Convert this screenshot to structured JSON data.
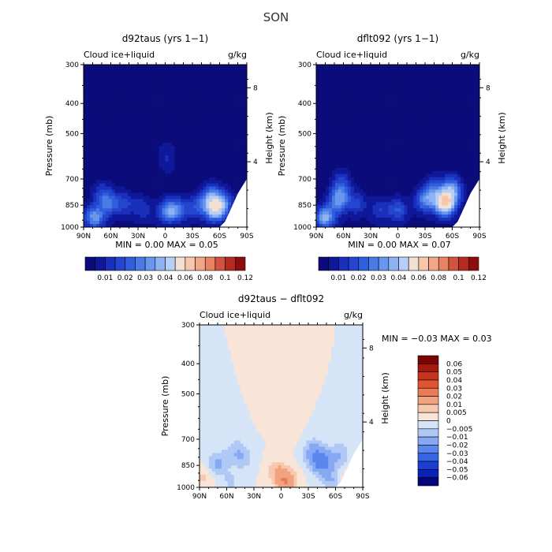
{
  "figure": {
    "title": "SON",
    "colors": {
      "seq": [
        "#0b0b7a",
        "#0e1899",
        "#1a2fbb",
        "#2446cf",
        "#2f5fdf",
        "#4a7be6",
        "#6a97ee",
        "#8fb3f2",
        "#b7cff6",
        "#f4dfd3",
        "#f6c6ad",
        "#f0a687",
        "#e98163",
        "#d25340",
        "#b32a20",
        "#8e0c0c"
      ],
      "div": [
        "#05057a",
        "#0a22b6",
        "#1b3fd6",
        "#3466e6",
        "#5a86ee",
        "#87a8f3",
        "#b0c8f6",
        "#d6e4f8",
        "#f9e5d8",
        "#f7c8ad",
        "#f1a380",
        "#eb7b57",
        "#e05432",
        "#c7331c",
        "#a5180d",
        "#7a0404"
      ]
    }
  },
  "chart_data": [
    {
      "type": "heatmap",
      "title": "d92taus (yrs 1−1)",
      "left_label": "Cloud ice+liquid",
      "right_label": "g/kg",
      "ylabel": "Pressure (mb)",
      "ylabel2": "Height (km)",
      "x_ticks": [
        "90N",
        "60N",
        "30N",
        "0",
        "30S",
        "60S",
        "90S"
      ],
      "y_ticks": [
        "300",
        "400",
        "500",
        "700",
        "850",
        "1000"
      ],
      "y2_ticks": [
        "8",
        "4"
      ],
      "stats": "MIN =    0.00   MAX =    0.05",
      "colorbar": {
        "labels": [
          "0.01",
          "0.02",
          "0.03",
          "0.04",
          "0.06",
          "0.08",
          "0.1",
          "0.12"
        ]
      },
      "features": [
        {
          "lat": 78,
          "p": 930,
          "value": 0.03
        },
        {
          "lat": 62,
          "p": 840,
          "value": 0.02
        },
        {
          "lat": 70,
          "p": 780,
          "value": 0.012
        },
        {
          "lat": 45,
          "p": 840,
          "value": 0.014
        },
        {
          "lat": 25,
          "p": 870,
          "value": 0.012
        },
        {
          "lat": -2,
          "p": 600,
          "value": 0.01
        },
        {
          "lat": -3,
          "p": 890,
          "value": 0.028
        },
        {
          "lat": -15,
          "p": 880,
          "value": 0.018
        },
        {
          "lat": -35,
          "p": 860,
          "value": 0.016
        },
        {
          "lat": -55,
          "p": 880,
          "value": 0.042
        },
        {
          "lat": -50,
          "p": 800,
          "value": 0.026
        },
        {
          "lat": -65,
          "p": 830,
          "value": 0.02
        }
      ]
    },
    {
      "type": "heatmap",
      "title": "dflt092 (yrs 1−1)",
      "left_label": "Cloud ice+liquid",
      "right_label": "g/kg",
      "ylabel": "Pressure (mb)",
      "ylabel2": "Height (km)",
      "x_ticks": [
        "90N",
        "60N",
        "30N",
        "0",
        "30S",
        "60S",
        "90S"
      ],
      "y_ticks": [
        "300",
        "400",
        "500",
        "700",
        "850",
        "1000"
      ],
      "y2_ticks": [
        "8",
        "4"
      ],
      "stats": "MIN =    0.00   MAX =    0.07",
      "colorbar": {
        "labels": [
          "0.01",
          "0.02",
          "0.03",
          "0.04",
          "0.06",
          "0.08",
          "0.1",
          "0.12"
        ]
      },
      "features": [
        {
          "lat": 80,
          "p": 930,
          "value": 0.034
        },
        {
          "lat": 65,
          "p": 820,
          "value": 0.028
        },
        {
          "lat": 62,
          "p": 730,
          "value": 0.016
        },
        {
          "lat": 45,
          "p": 840,
          "value": 0.014
        },
        {
          "lat": 20,
          "p": 880,
          "value": 0.012
        },
        {
          "lat": 0,
          "p": 880,
          "value": 0.018
        },
        {
          "lat": -30,
          "p": 820,
          "value": 0.026
        },
        {
          "lat": -52,
          "p": 840,
          "value": 0.058
        },
        {
          "lat": -60,
          "p": 760,
          "value": 0.03
        },
        {
          "lat": -40,
          "p": 760,
          "value": 0.018
        }
      ]
    },
    {
      "type": "heatmap",
      "title": "d92taus − dflt092",
      "left_label": "Cloud ice+liquid",
      "right_label": "g/kg",
      "ylabel": "Pressure (mb)",
      "ylabel2": "Height (km)",
      "x_ticks": [
        "90N",
        "60N",
        "30N",
        "0",
        "30S",
        "60S",
        "90S"
      ],
      "y_ticks": [
        "300",
        "400",
        "500",
        "700",
        "850",
        "1000"
      ],
      "y2_ticks": [
        "8",
        "4"
      ],
      "stats": "MIN =   −0.03   MAX =    0.03",
      "colorbar": {
        "labels": [
          "0.06",
          "0.05",
          "0.04",
          "0.03",
          "0.02",
          "0.01",
          "0.005",
          "0",
          "−0.005",
          "−0.01",
          "−0.02",
          "−0.03",
          "−0.04",
          "−0.05",
          "−0.06"
        ]
      },
      "features": [
        {
          "lat": 5,
          "p": 560,
          "value": 0.004
        },
        {
          "lat": -10,
          "p": 640,
          "value": 0.004
        },
        {
          "lat": 50,
          "p": 770,
          "value": -0.008
        },
        {
          "lat": 70,
          "p": 840,
          "value": -0.012
        },
        {
          "lat": 40,
          "p": 810,
          "value": -0.006
        },
        {
          "lat": 85,
          "p": 930,
          "value": 0.006
        },
        {
          "lat": 55,
          "p": 960,
          "value": -0.006
        },
        {
          "lat": 5,
          "p": 880,
          "value": 0.008
        },
        {
          "lat": -5,
          "p": 950,
          "value": 0.02
        },
        {
          "lat": -45,
          "p": 830,
          "value": -0.026
        },
        {
          "lat": -35,
          "p": 770,
          "value": -0.012
        },
        {
          "lat": -65,
          "p": 790,
          "value": -0.01
        },
        {
          "lat": -75,
          "p": 940,
          "value": 0.006
        },
        {
          "lat": -55,
          "p": 950,
          "value": -0.01
        }
      ]
    }
  ]
}
